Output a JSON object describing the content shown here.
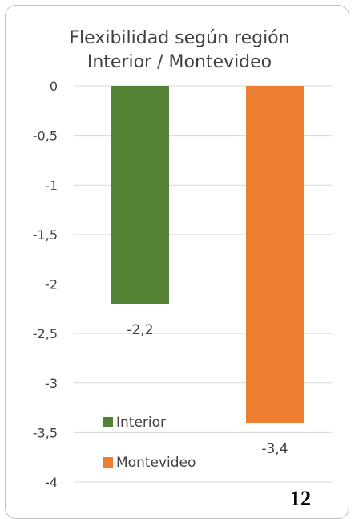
{
  "colors": {
    "interior": "#548235",
    "montevideo": "#ED7D31",
    "grid": "#d9d9d9",
    "text": "#404040"
  },
  "chart_data": {
    "type": "bar",
    "title": [
      "Flexibilidad según región",
      "Interior / Montevideo"
    ],
    "categories": [
      "Interior",
      "Montevideo"
    ],
    "values": [
      -2.2,
      -3.4
    ],
    "data_labels": [
      "-2,2",
      "-3,4"
    ],
    "ylim": [
      -4,
      0
    ],
    "yticks": [
      0,
      -0.5,
      -1,
      -1.5,
      -2,
      -2.5,
      -3,
      -3.5,
      -4
    ],
    "ytick_labels": [
      "0",
      "-0,5",
      "-1",
      "-1,5",
      "-2",
      "-2,5",
      "-3",
      "-3,5",
      "-4"
    ],
    "grid": true,
    "legend": {
      "position": "bottom-left",
      "entries": [
        "Interior",
        "Montevideo"
      ]
    }
  },
  "page_number": "12"
}
